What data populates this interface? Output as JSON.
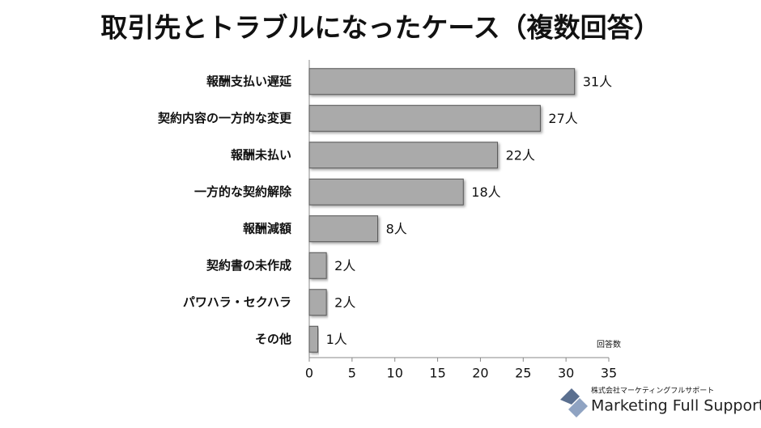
{
  "chart_data": {
    "type": "bar",
    "orientation": "horizontal",
    "title": "取引先とトラブルになったケース（複数回答）",
    "x_label": "回答数",
    "categories": [
      "報酬支払い遅延",
      "契約内容の一方的な変更",
      "報酬未払い",
      "一方的な契約解除",
      "報酬減額",
      "契約書の未作成",
      "パワハラ・セクハラ",
      "その他"
    ],
    "values": [
      31,
      27,
      22,
      18,
      8,
      2,
      2,
      1
    ],
    "value_labels": [
      "31人",
      "27人",
      "22人",
      "18人",
      "8人",
      "2人",
      "2人",
      "1人"
    ],
    "color": "#aaaaaa",
    "xlim": [
      0,
      35
    ],
    "xticks": [
      0,
      5,
      10,
      15,
      20,
      25,
      30,
      35
    ]
  },
  "logo": {
    "company": "株式会社マーケティングフルサポート",
    "brand": "Marketing Full Support"
  }
}
